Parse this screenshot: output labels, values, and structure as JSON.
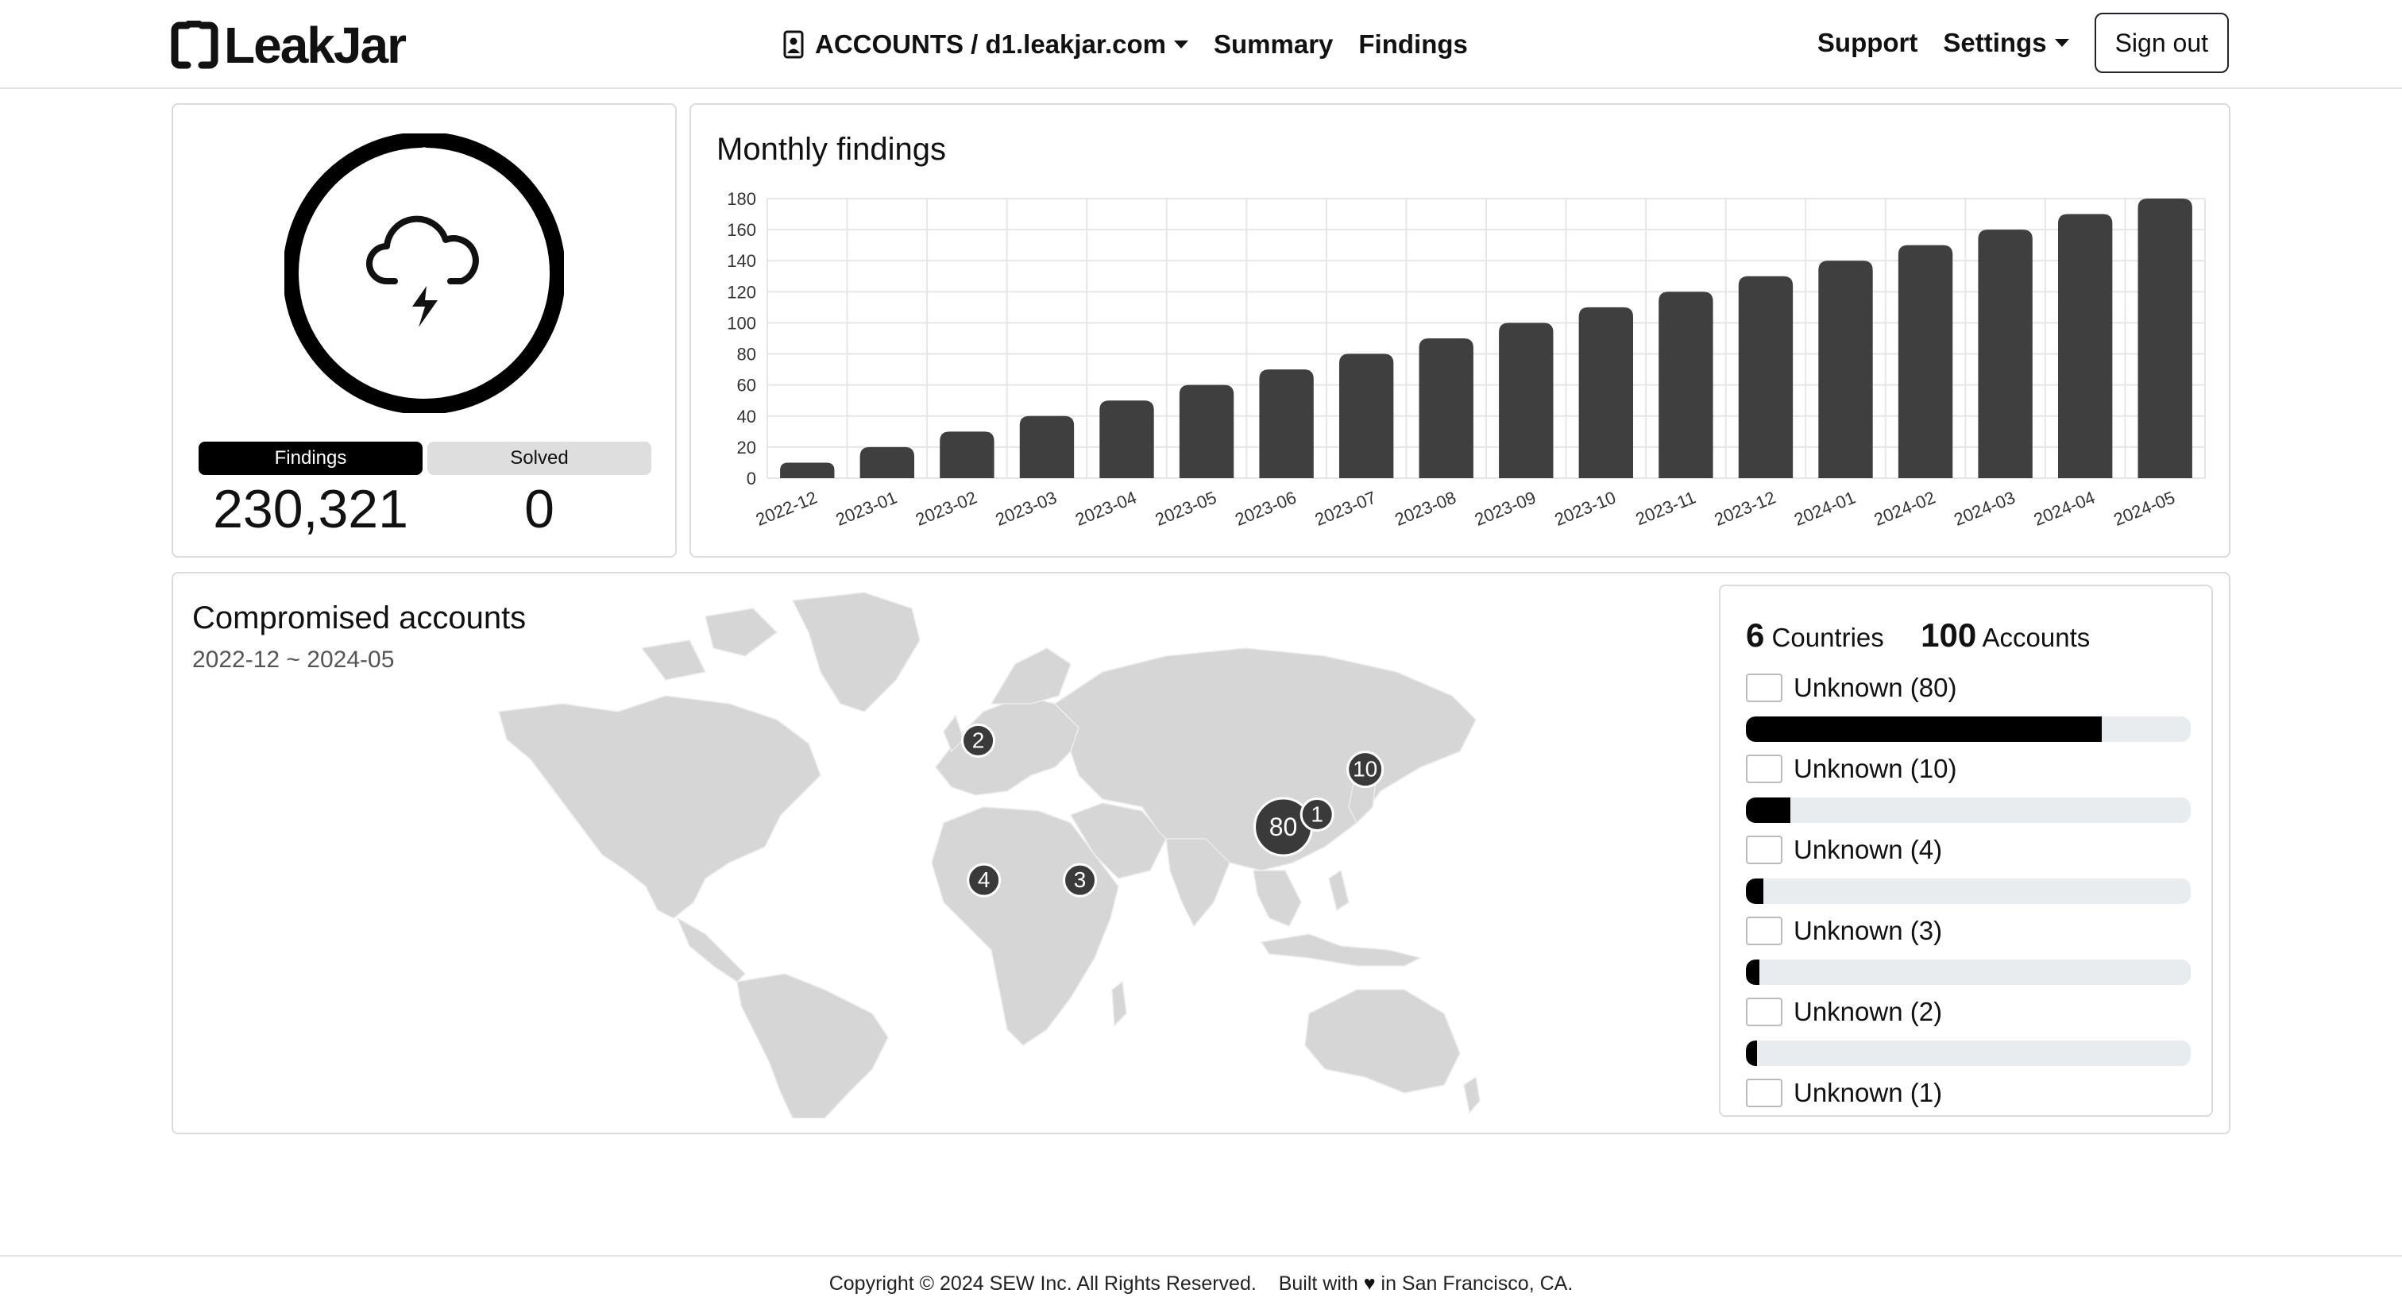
{
  "nav": {
    "logo_text": "LeakJar",
    "account_menu": "ACCOUNTS / d1.leakjar.com",
    "summary": "Summary",
    "findings": "Findings",
    "support": "Support",
    "settings": "Settings",
    "signout": "Sign out"
  },
  "status": {
    "findings_label": "Findings",
    "solved_label": "Solved",
    "findings_value": "230,321",
    "solved_value": "0",
    "icon": "cloud-lightning-icon"
  },
  "chart_data": {
    "type": "bar",
    "title": "Monthly findings",
    "categories": [
      "2022-12",
      "2023-01",
      "2023-02",
      "2023-03",
      "2023-04",
      "2023-05",
      "2023-06",
      "2023-07",
      "2023-08",
      "2023-09",
      "2023-10",
      "2023-11",
      "2023-12",
      "2024-01",
      "2024-02",
      "2024-03",
      "2024-04",
      "2024-05"
    ],
    "values": [
      10,
      20,
      30,
      40,
      50,
      60,
      70,
      80,
      90,
      100,
      110,
      120,
      130,
      140,
      150,
      160,
      170,
      180
    ],
    "ylim": [
      0,
      180
    ],
    "yticks": [
      0,
      20,
      40,
      60,
      80,
      100,
      120,
      140,
      160,
      180
    ],
    "grid": true,
    "bar_color": "#3f3f3f"
  },
  "map": {
    "title": "Compromised accounts",
    "date_range": "2022-12 ~ 2024-05",
    "markers": [
      {
        "label": "80",
        "lon": 109,
        "lat": 21
      },
      {
        "label": "10",
        "lon": 138,
        "lat": 35
      },
      {
        "label": "1",
        "lon": 121,
        "lat": 24
      },
      {
        "label": "2",
        "lon": 1,
        "lat": 42
      },
      {
        "label": "4",
        "lon": 3,
        "lat": 8
      },
      {
        "label": "3",
        "lon": 37,
        "lat": 8
      }
    ]
  },
  "summary_panel": {
    "countries_count": "6",
    "countries_label": "Countries",
    "accounts_count": "100",
    "accounts_label": "Accounts",
    "items": [
      {
        "label": "Unknown (80)",
        "fraction": 0.8
      },
      {
        "label": "Unknown (10)",
        "fraction": 0.1
      },
      {
        "label": "Unknown (4)",
        "fraction": 0.04
      },
      {
        "label": "Unknown (3)",
        "fraction": 0.03
      },
      {
        "label": "Unknown (2)",
        "fraction": 0.02
      },
      {
        "label": "Unknown (1)",
        "fraction": 0.01
      }
    ]
  },
  "footer": {
    "copyright": "Copyright © 2024 SEW Inc. All Rights Reserved.",
    "built_with": "Built with",
    "location": "in San Francisco, CA."
  }
}
